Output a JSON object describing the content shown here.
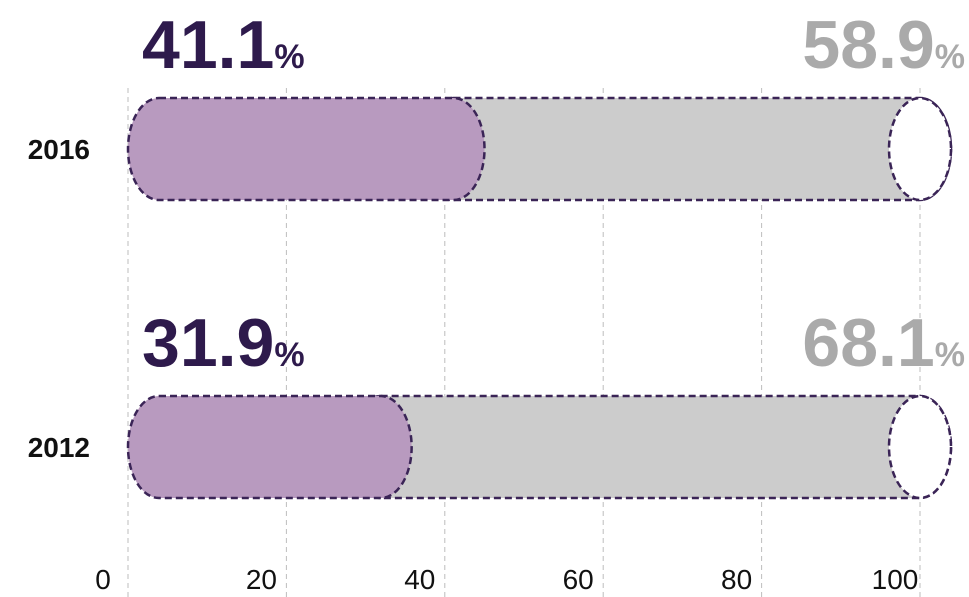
{
  "chart_data": {
    "type": "bar",
    "orientation": "horizontal",
    "stacked": true,
    "categories": [
      "2016",
      "2012"
    ],
    "series": [
      {
        "color": "#b89abf",
        "label_color": "#2e1a4c",
        "values": [
          41.1,
          31.9
        ],
        "value_labels": [
          "41.1%",
          "31.9%"
        ]
      },
      {
        "color": "#cccccc",
        "label_color": "#aaaaaa",
        "values": [
          58.9,
          68.1
        ],
        "value_labels": [
          "58.9%",
          "68.1%"
        ]
      }
    ],
    "xlim": [
      0,
      100
    ],
    "xticks": [
      0,
      20,
      40,
      60,
      80,
      100
    ],
    "grid": true
  }
}
